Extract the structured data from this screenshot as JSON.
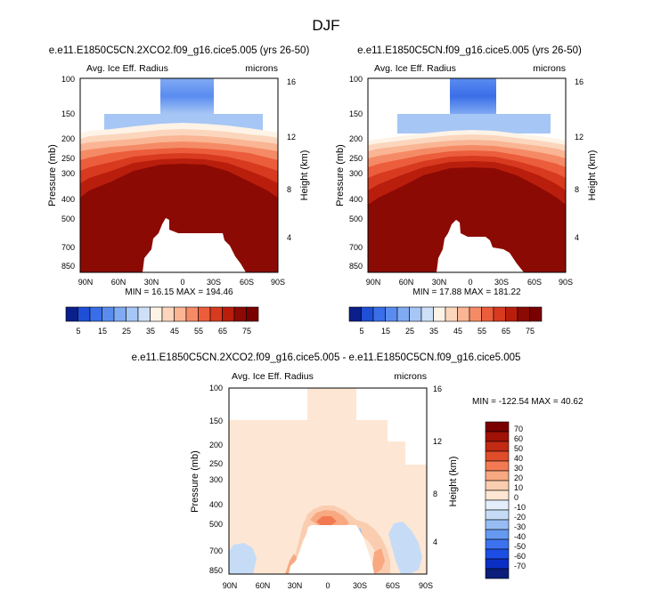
{
  "figure": {
    "title": "DJF",
    "x_tick_labels": [
      "90N",
      "60N",
      "30N",
      "0",
      "30S",
      "60S",
      "90S"
    ],
    "y_tick_labels": [
      "100",
      "150",
      "200",
      "250",
      "300",
      "400",
      "500",
      "700",
      "850"
    ],
    "height_tick_labels": [
      "16",
      "12",
      "8",
      "4"
    ],
    "y_axis_label": "Pressure (mb)",
    "right_axis_label": "Height (km)"
  },
  "chart_data": [
    {
      "type": "heatmap",
      "title": "e.e11.E1850C5CN.2XCO2.f09_g16.cice5.005 (yrs 26-50)",
      "left_string": "Avg. Ice Eff. Radius",
      "right_string": "microns",
      "xlabel": "",
      "ylabel": "Pressure (mb)",
      "right_ylabel": "Height (km)",
      "xlim": [
        90,
        -90
      ],
      "ylim": [
        100,
        950
      ],
      "stats": "MIN = 16.15  MAX = 194.46",
      "levels": [
        5,
        10,
        15,
        20,
        25,
        30,
        35,
        40,
        45,
        50,
        55,
        60,
        65,
        70,
        75
      ],
      "colorbar_labels": [
        "5",
        "15",
        "25",
        "35",
        "45",
        "55",
        "65",
        "75"
      ]
    },
    {
      "type": "heatmap",
      "title": "e.e11.E1850C5CN.f09_g16.cice5.005 (yrs 26-50)",
      "left_string": "Avg. Ice Eff. Radius",
      "right_string": "microns",
      "xlabel": "",
      "ylabel": "Pressure (mb)",
      "right_ylabel": "Height (km)",
      "xlim": [
        90,
        -90
      ],
      "ylim": [
        100,
        950
      ],
      "stats": "MIN = 17.88  MAX = 181.22",
      "levels": [
        5,
        10,
        15,
        20,
        25,
        30,
        35,
        40,
        45,
        50,
        55,
        60,
        65,
        70,
        75
      ],
      "colorbar_labels": [
        "5",
        "15",
        "25",
        "35",
        "45",
        "55",
        "65",
        "75"
      ]
    },
    {
      "type": "heatmap",
      "title": "e.e11.E1850C5CN.2XCO2.f09_g16.cice5.005 - e.e11.E1850C5CN.f09_g16.cice5.005",
      "left_string": "Avg. Ice Eff. Radius",
      "right_string": "microns",
      "xlabel": "",
      "ylabel": "Pressure (mb)",
      "right_ylabel": "Height (km)",
      "xlim": [
        90,
        -90
      ],
      "ylim": [
        100,
        950
      ],
      "stats": "MIN = -122.54  MAX =  40.62",
      "levels": [
        -70,
        -60,
        -50,
        -40,
        -30,
        -20,
        -10,
        0,
        10,
        20,
        30,
        40,
        50,
        60,
        70
      ],
      "colorbar_labels": [
        "70",
        "60",
        "50",
        "40",
        "30",
        "20",
        "10",
        "0",
        "-10",
        "-20",
        "-30",
        "-40",
        "-50",
        "-60",
        "-70"
      ]
    }
  ],
  "colors": {
    "seq": [
      "#0a1f8a",
      "#1f4fd6",
      "#3a6ee8",
      "#5a8cf0",
      "#80aaf2",
      "#a6c6f5",
      "#cde0f7",
      "#fdf3e6",
      "#fbd6bd",
      "#f9b594",
      "#f58b66",
      "#ec5d3c",
      "#d73a1f",
      "#b91e0d",
      "#8c0a04",
      "#7a0000"
    ],
    "diff": [
      "#0a1e7a",
      "#0b2fc4",
      "#1c4ee6",
      "#3c72ee",
      "#6699f2",
      "#98bdf4",
      "#c6dcf6",
      "#e4eefa",
      "#fde7d4",
      "#fbcdb0",
      "#f8a982",
      "#f27a52",
      "#e04d2a",
      "#c22a12",
      "#a01205",
      "#7a0000"
    ],
    "diff_bg": "#fde7d4",
    "mask": "#ffffff"
  }
}
